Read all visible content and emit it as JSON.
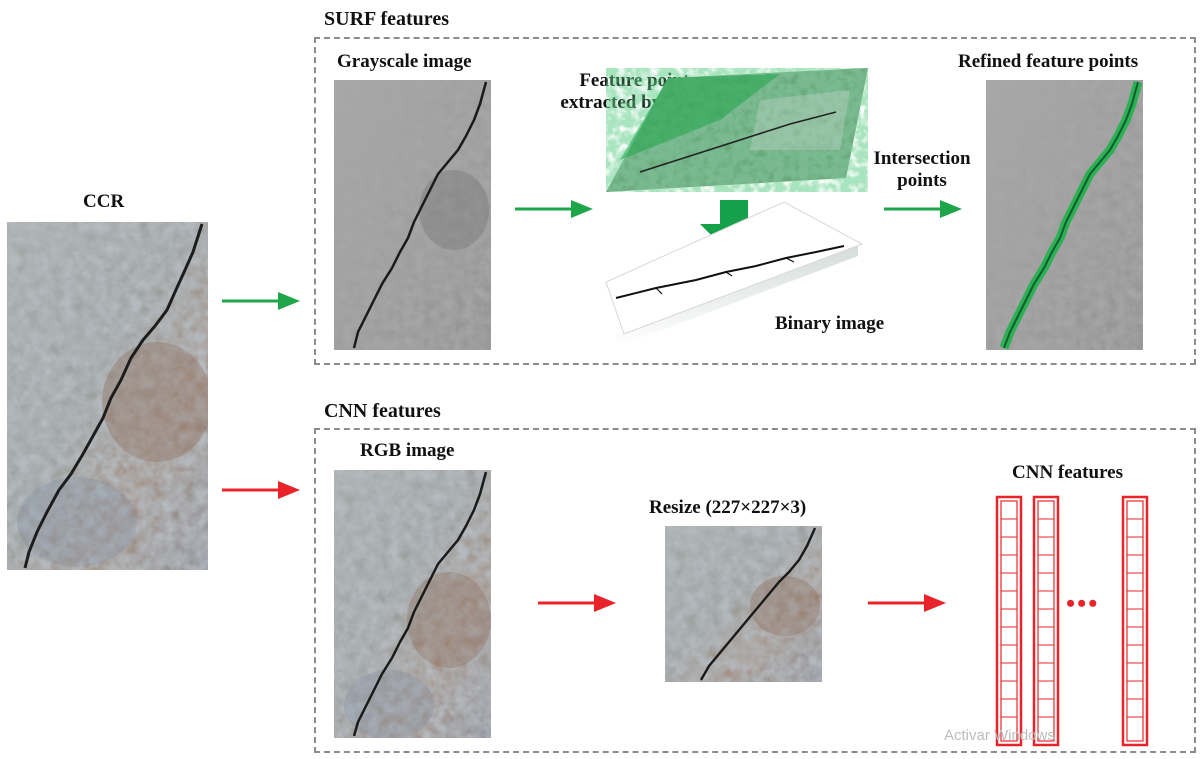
{
  "ccr_label": "CCR",
  "surf": {
    "title": "SURF features",
    "grayscale_label": "Grayscale image",
    "feature_points_label_line1": "Feature points",
    "feature_points_label_line2": "extracted by SURF",
    "binary_label": "Binary image",
    "intersection_label_line1": "Intersection",
    "intersection_label_line2": "points",
    "refined_label": "Refined feature points"
  },
  "cnn": {
    "title": "CNN features",
    "rgb_label": "RGB image",
    "resize_label": "Resize (227×227×3)",
    "features_label": "CNN features",
    "ellipsis": "•••"
  },
  "watermark": "Activar Windows",
  "colors": {
    "surf_arrow": "#1fa64a",
    "cnn_arrow": "#e8242a",
    "feature_green": "#1fb14a",
    "cnn_column": "#e8242a",
    "panel_border": "#8c8c8c"
  }
}
